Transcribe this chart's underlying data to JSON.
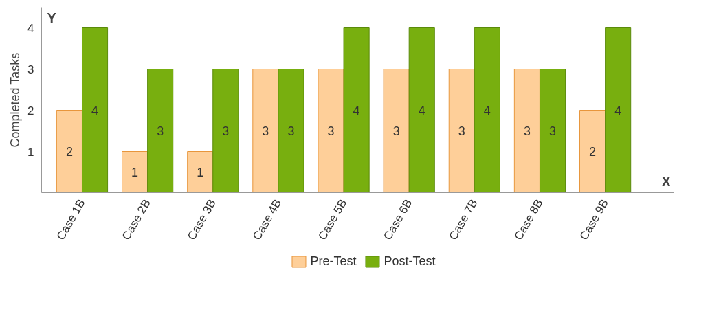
{
  "chart_data": {
    "type": "bar",
    "xlabel": "X",
    "ylabel": "Completed Tasks",
    "annotations": [
      "Y"
    ],
    "categories": [
      "Case 1B",
      "Case 2B",
      "Case 3B",
      "Case 4B",
      "Case 5B",
      "Case 6B",
      "Case 7B",
      "Case 8B",
      "Case 9B"
    ],
    "series": [
      {
        "name": "Pre-Test",
        "color": "#fecf99",
        "values": [
          2,
          1,
          1,
          3,
          3,
          3,
          3,
          3,
          2
        ]
      },
      {
        "name": "Post-Test",
        "color": "#78af0f",
        "values": [
          4,
          3,
          3,
          3,
          4,
          4,
          4,
          3,
          4
        ]
      }
    ],
    "ylim": [
      0,
      4.5
    ],
    "yticks": [
      1,
      2,
      3,
      4
    ],
    "grid": false,
    "legend": "bottom",
    "data_labels": true
  }
}
